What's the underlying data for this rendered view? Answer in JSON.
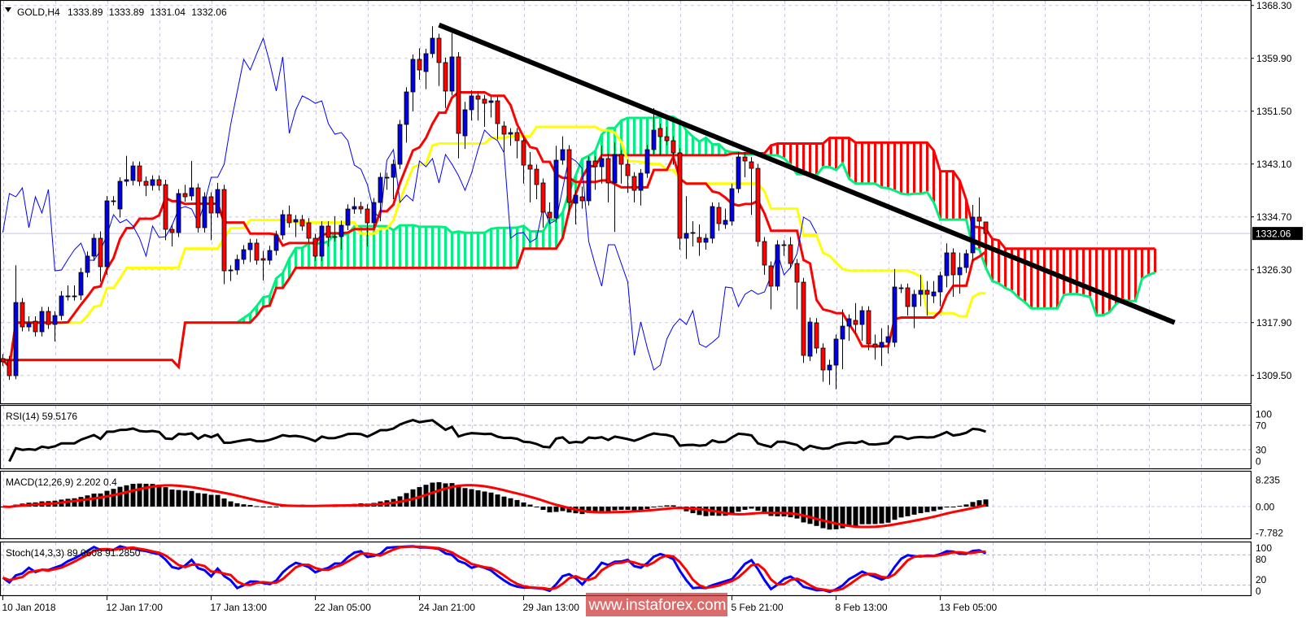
{
  "header": {
    "symbol": "GOLD,H4",
    "open": "1333.89",
    "high": "1333.89",
    "low": "1331.04",
    "close": "1332.06"
  },
  "panels": {
    "rsi_label": "RSI(14) 59.5176",
    "macd_label": "MACD(12,26,9) 2.202 0.4",
    "stoch_label": "Stoch(14,3,3) 89.0608 91.2850"
  },
  "current_price": "1332.06",
  "watermark": "www.instaforex.com",
  "colors": {
    "bull": "#0000e0",
    "bear": "#ff0000",
    "tenkan": "#ff0000",
    "kijun": "#ffff00",
    "chikou": "#0000ff",
    "cloud_bull": "#00f080",
    "cloud_bear": "#ff0000",
    "trendline": "#000000",
    "rsi": "#000000",
    "macd_hist": "#000000",
    "macd_signal": "#ff0000",
    "stoch_main": "#0000ff",
    "stoch_signal": "#ff0000",
    "grid": "#c8c8e6"
  },
  "chart_data": {
    "type": "candlestick",
    "symbol": "GOLD",
    "timeframe": "H4",
    "ylim": [
      1309.5,
      1368.3
    ],
    "grid": true,
    "price_axis": {
      "ticks": [
        "1368.30",
        "1359.90",
        "1351.50",
        "1343.10",
        "1334.70",
        "1326.30",
        "1317.90",
        "1309.50"
      ]
    },
    "time_axis": {
      "ticks": [
        {
          "bar": 0,
          "label": "10 Jan 2018"
        },
        {
          "bar": 16,
          "label": "12 Jan 17:00"
        },
        {
          "bar": 32,
          "label": "17 Jan 13:00"
        },
        {
          "bar": 48,
          "label": "22 Jan 05:00"
        },
        {
          "bar": 64,
          "label": "24 Jan 21:00"
        },
        {
          "bar": 80,
          "label": "29 Jan 13:00"
        },
        {
          "bar": 112,
          "label": "5 Feb 21:00"
        },
        {
          "bar": 128,
          "label": "8 Feb 13:00"
        },
        {
          "bar": 144,
          "label": "13 Feb 05:00"
        }
      ]
    },
    "candles_format": [
      "open",
      "high",
      "low",
      "close"
    ],
    "candles": [
      [
        1312.18,
        1312.9,
        1311.0,
        1311.66
      ],
      [
        1311.92,
        1312.6,
        1308.8,
        1309.46
      ],
      [
        1309.46,
        1327.0,
        1308.9,
        1321.09
      ],
      [
        1321.09,
        1321.8,
        1316.5,
        1317.21
      ],
      [
        1317.21,
        1318.9,
        1316.5,
        1317.86
      ],
      [
        1318.12,
        1318.9,
        1315.7,
        1316.44
      ],
      [
        1316.44,
        1320.4,
        1315.7,
        1319.67
      ],
      [
        1319.67,
        1320.4,
        1316.9,
        1317.6
      ],
      [
        1317.6,
        1319.7,
        1314.9,
        1319.02
      ],
      [
        1319.02,
        1322.9,
        1318.3,
        1322.13
      ],
      [
        1322.13,
        1323.8,
        1321.4,
        1322.13
      ],
      [
        1322.13,
        1323.8,
        1321.4,
        1322.13
      ],
      [
        1322.26,
        1326.6,
        1321.5,
        1325.87
      ],
      [
        1325.87,
        1329.2,
        1325.1,
        1328.46
      ],
      [
        1328.46,
        1332.0,
        1327.7,
        1331.3
      ],
      [
        1331.3,
        1332.4,
        1324.4,
        1326.78
      ],
      [
        1326.78,
        1338.0,
        1325.5,
        1337.25
      ],
      [
        1337.25,
        1338.0,
        1336.5,
        1337.25
      ],
      [
        1335.95,
        1341.0,
        1334.6,
        1340.35
      ],
      [
        1340.35,
        1344.4,
        1339.6,
        1340.61
      ],
      [
        1340.48,
        1343.5,
        1339.7,
        1342.8
      ],
      [
        1342.8,
        1343.5,
        1339.6,
        1340.35
      ],
      [
        1340.35,
        1341.1,
        1338.0,
        1339.7
      ],
      [
        1339.7,
        1341.3,
        1338.9,
        1340.61
      ],
      [
        1340.61,
        1341.3,
        1338.9,
        1339.7
      ],
      [
        1339.83,
        1340.6,
        1331.0,
        1332.72
      ],
      [
        1332.72,
        1333.5,
        1330.0,
        1332.21
      ],
      [
        1332.21,
        1339.1,
        1331.5,
        1338.41
      ],
      [
        1338.41,
        1339.8,
        1337.1,
        1337.89
      ],
      [
        1338.02,
        1343.6,
        1337.3,
        1339.31
      ],
      [
        1339.31,
        1340.0,
        1332.2,
        1332.98
      ],
      [
        1332.98,
        1338.6,
        1332.2,
        1337.89
      ],
      [
        1337.89,
        1338.6,
        1331.0,
        1335.31
      ],
      [
        1335.31,
        1340.1,
        1334.6,
        1339.05
      ],
      [
        1339.05,
        1339.8,
        1324.0,
        1326.13
      ],
      [
        1326.26,
        1327.0,
        1324.5,
        1326.26
      ],
      [
        1326.26,
        1328.7,
        1325.5,
        1327.94
      ],
      [
        1327.94,
        1330.2,
        1327.2,
        1329.49
      ],
      [
        1329.49,
        1331.2,
        1327.5,
        1330.53
      ],
      [
        1330.53,
        1331.2,
        1327.1,
        1327.81
      ],
      [
        1328.07,
        1329.3,
        1324.6,
        1327.81
      ],
      [
        1327.81,
        1330.1,
        1327.1,
        1329.36
      ],
      [
        1329.36,
        1332.5,
        1328.6,
        1331.82
      ],
      [
        1331.82,
        1335.8,
        1331.1,
        1335.05
      ],
      [
        1335.05,
        1336.5,
        1333.0,
        1333.76
      ],
      [
        1333.89,
        1335.0,
        1331.5,
        1334.27
      ],
      [
        1334.27,
        1335.0,
        1332.5,
        1333.24
      ],
      [
        1333.76,
        1334.5,
        1330.6,
        1331.3
      ],
      [
        1331.3,
        1332.0,
        1327.7,
        1328.46
      ],
      [
        1328.46,
        1334.0,
        1327.7,
        1333.24
      ],
      [
        1333.24,
        1334.0,
        1330.0,
        1331.43
      ],
      [
        1331.56,
        1334.8,
        1330.8,
        1331.56
      ],
      [
        1331.56,
        1334.1,
        1329.5,
        1333.37
      ],
      [
        1333.37,
        1336.7,
        1332.6,
        1335.95
      ],
      [
        1335.95,
        1337.8,
        1335.2,
        1336.34
      ],
      [
        1336.34,
        1337.1,
        1335.2,
        1335.95
      ],
      [
        1335.95,
        1336.7,
        1330.0,
        1333.76
      ],
      [
        1333.76,
        1337.7,
        1333.0,
        1336.99
      ],
      [
        1336.99,
        1341.7,
        1334.0,
        1340.99
      ],
      [
        1340.99,
        1341.7,
        1339.0,
        1340.99
      ],
      [
        1340.99,
        1343.8,
        1337.5,
        1343.06
      ],
      [
        1343.06,
        1350.1,
        1342.3,
        1349.39
      ],
      [
        1349.39,
        1355.3,
        1346.5,
        1354.56
      ],
      [
        1354.56,
        1360.5,
        1351.5,
        1359.73
      ],
      [
        1359.73,
        1361.5,
        1356.5,
        1358.05
      ],
      [
        1357.79,
        1361.4,
        1355.0,
        1360.64
      ],
      [
        1360.64,
        1365.0,
        1360.0,
        1363.09
      ],
      [
        1363.09,
        1363.8,
        1355.5,
        1359.22
      ],
      [
        1359.22,
        1360.0,
        1352.0,
        1354.69
      ],
      [
        1354.69,
        1363.9,
        1354.0,
        1360.12
      ],
      [
        1360.12,
        1360.9,
        1344.0,
        1347.97
      ],
      [
        1347.58,
        1353.0,
        1345.5,
        1351.72
      ],
      [
        1351.72,
        1354.8,
        1350.0,
        1353.92
      ],
      [
        1353.92,
        1354.6,
        1350.0,
        1353.4
      ],
      [
        1353.4,
        1354.1,
        1349.0,
        1352.75
      ],
      [
        1352.88,
        1353.8,
        1350.5,
        1353.14
      ],
      [
        1353.14,
        1353.9,
        1347.0,
        1349.52
      ],
      [
        1349.13,
        1349.9,
        1345.0,
        1347.84
      ],
      [
        1347.84,
        1348.8,
        1346.0,
        1348.1
      ],
      [
        1348.1,
        1348.8,
        1344.0,
        1346.81
      ],
      [
        1346.81,
        1347.5,
        1340.0,
        1342.93
      ],
      [
        1342.93,
        1345.0,
        1337.0,
        1342.28
      ],
      [
        1342.28,
        1343.0,
        1337.5,
        1339.83
      ],
      [
        1340.09,
        1340.8,
        1333.0,
        1335.44
      ],
      [
        1335.44,
        1337.0,
        1333.5,
        1334.53
      ],
      [
        1334.53,
        1346.0,
        1333.8,
        1343.71
      ],
      [
        1343.71,
        1347.5,
        1343.0,
        1345.39
      ],
      [
        1345.39,
        1346.1,
        1335.0,
        1336.99
      ],
      [
        1336.86,
        1338.9,
        1333.5,
        1338.15
      ],
      [
        1337.89,
        1339.5,
        1336.0,
        1337.25
      ],
      [
        1337.25,
        1344.3,
        1336.5,
        1343.58
      ],
      [
        1343.58,
        1344.3,
        1339.0,
        1342.67
      ],
      [
        1342.67,
        1346.0,
        1340.0,
        1343.97
      ],
      [
        1343.97,
        1344.7,
        1337.0,
        1340.09
      ],
      [
        1340.09,
        1346.5,
        1332.3,
        1344.61
      ],
      [
        1344.61,
        1345.3,
        1340.0,
        1343.06
      ],
      [
        1343.06,
        1343.8,
        1338.5,
        1341.25
      ],
      [
        1341.12,
        1341.8,
        1337.0,
        1338.92
      ],
      [
        1338.92,
        1342.3,
        1336.5,
        1341.64
      ],
      [
        1341.64,
        1346.1,
        1340.9,
        1345.39
      ],
      [
        1345.39,
        1352.0,
        1344.7,
        1348.49
      ],
      [
        1348.75,
        1349.5,
        1344.5,
        1347.45
      ],
      [
        1347.45,
        1349.0,
        1346.1,
        1346.81
      ],
      [
        1346.81,
        1347.5,
        1343.0,
        1344.87
      ],
      [
        1344.87,
        1345.6,
        1329.5,
        1331.3
      ],
      [
        1331.3,
        1338.0,
        1328.0,
        1332.08
      ],
      [
        1332.21,
        1334.0,
        1330.0,
        1332.21
      ],
      [
        1331.43,
        1333.5,
        1328.5,
        1330.66
      ],
      [
        1330.66,
        1332.0,
        1329.5,
        1331.3
      ],
      [
        1331.3,
        1337.0,
        1330.5,
        1336.34
      ],
      [
        1336.21,
        1337.0,
        1332.5,
        1333.63
      ],
      [
        1333.5,
        1336.0,
        1332.8,
        1334.15
      ],
      [
        1334.02,
        1340.0,
        1333.3,
        1339.18
      ],
      [
        1339.18,
        1345.0,
        1338.5,
        1344.22
      ],
      [
        1344.22,
        1345.0,
        1341.0,
        1343.58
      ],
      [
        1343.45,
        1344.2,
        1335.0,
        1342.41
      ],
      [
        1342.41,
        1343.1,
        1330.0,
        1330.78
      ],
      [
        1330.78,
        1331.5,
        1325.5,
        1327.04
      ],
      [
        1326.91,
        1327.6,
        1320.0,
        1323.68
      ],
      [
        1323.68,
        1331.0,
        1323.0,
        1330.27
      ],
      [
        1330.27,
        1331.0,
        1328.5,
        1330.27
      ],
      [
        1330.27,
        1331.5,
        1326.5,
        1327.29
      ],
      [
        1327.29,
        1328.0,
        1320.0,
        1324.32
      ],
      [
        1324.32,
        1325.0,
        1311.5,
        1312.69
      ],
      [
        1312.56,
        1318.7,
        1311.8,
        1317.99
      ],
      [
        1317.86,
        1318.6,
        1313.0,
        1313.85
      ],
      [
        1313.85,
        1314.6,
        1308.5,
        1310.37
      ],
      [
        1310.37,
        1312.0,
        1308.0,
        1311.14
      ],
      [
        1311.14,
        1316.0,
        1307.3,
        1315.28
      ],
      [
        1315.28,
        1320.0,
        1310.5,
        1317.34
      ],
      [
        1317.34,
        1319.2,
        1315.0,
        1318.51
      ],
      [
        1318.25,
        1321.0,
        1316.0,
        1317.6
      ],
      [
        1317.6,
        1320.5,
        1315.0,
        1319.8
      ],
      [
        1319.8,
        1320.5,
        1313.5,
        1314.5
      ],
      [
        1314.5,
        1316.0,
        1312.0,
        1313.98
      ],
      [
        1313.98,
        1317.0,
        1311.0,
        1314.76
      ],
      [
        1314.76,
        1317.5,
        1313.0,
        1315.66
      ],
      [
        1314.76,
        1326.4,
        1314.0,
        1323.55
      ],
      [
        1323.42,
        1324.0,
        1322.6,
        1323.42
      ],
      [
        1323.42,
        1324.1,
        1319.0,
        1320.45
      ],
      [
        1320.45,
        1323.1,
        1317.0,
        1322.39
      ],
      [
        1322.39,
        1325.5,
        1320.5,
        1323.03
      ],
      [
        1323.03,
        1324.5,
        1319.0,
        1322.39
      ],
      [
        1322.13,
        1324.5,
        1321.0,
        1322.77
      ],
      [
        1322.77,
        1326.0,
        1320.5,
        1325.36
      ],
      [
        1325.36,
        1330.5,
        1323.5,
        1328.98
      ],
      [
        1328.98,
        1329.7,
        1322.0,
        1325.49
      ],
      [
        1325.49,
        1329.0,
        1322.5,
        1326.65
      ],
      [
        1326.65,
        1329.5,
        1325.8,
        1328.85
      ],
      [
        1328.98,
        1336.6,
        1327.5,
        1334.66
      ],
      [
        1334.66,
        1337.8,
        1332.8,
        1334.02
      ],
      [
        1333.89,
        1333.89,
        1331.04,
        1332.06
      ]
    ],
    "trendline": {
      "from": {
        "bar": 67,
        "price": 1365.2
      },
      "to": {
        "bar": 180,
        "price": 1317.9
      }
    },
    "indicators": {
      "ichimoku": {
        "tenkan": 9,
        "kijun": 26,
        "senkou_b": 52
      },
      "rsi": {
        "period": 14,
        "levels": [
          70,
          30
        ],
        "axis_labels": [
          "100",
          "70",
          "30",
          "0"
        ],
        "ylim": [
          0,
          100
        ]
      },
      "macd": {
        "fast": 12,
        "slow": 26,
        "signal": 9,
        "axis_labels": [
          "8.235",
          "0.00",
          "-7.782"
        ],
        "ylim": [
          -7.782,
          8.235
        ]
      },
      "stochastic": {
        "k": 14,
        "d": 3,
        "slowing": 3,
        "levels": [
          80,
          20
        ],
        "axis_labels": [
          "100",
          "80",
          "20",
          "0"
        ],
        "ylim": [
          0,
          100
        ]
      }
    }
  }
}
